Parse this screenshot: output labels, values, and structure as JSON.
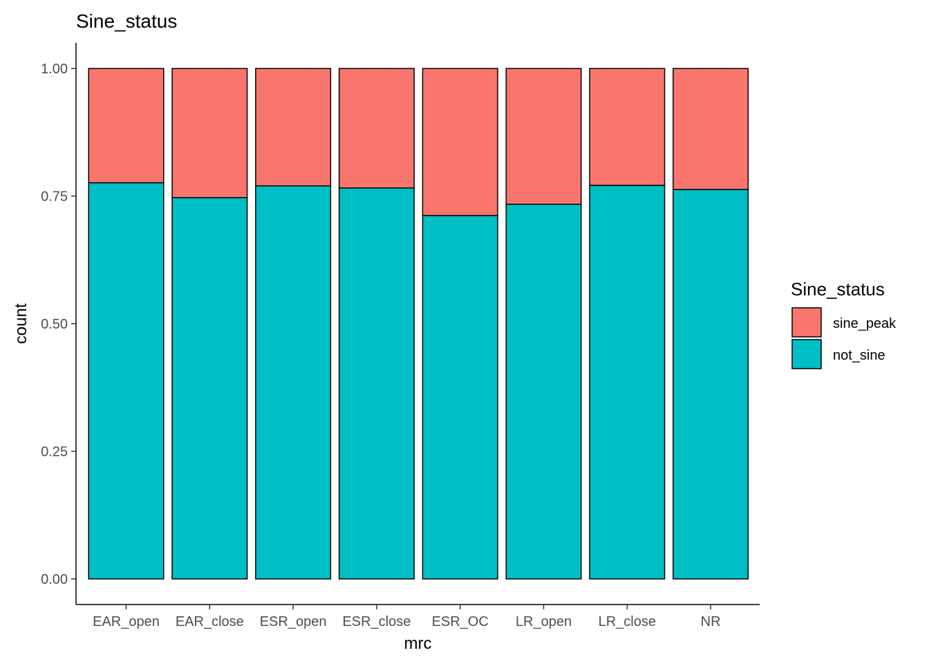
{
  "chart_data": {
    "type": "bar",
    "stacked": true,
    "title": "Sine_status",
    "xlabel": "mrc",
    "ylabel": "count",
    "ylim": [
      0,
      1
    ],
    "yticks": [
      "0.00",
      "0.25",
      "0.50",
      "0.75",
      "1.00"
    ],
    "grid": false,
    "legend": {
      "title": "Sine_status",
      "position": "right"
    },
    "categories": [
      "EAR_open",
      "EAR_close",
      "ESR_open",
      "ESR_close",
      "ESR_OC",
      "LR_open",
      "LR_close",
      "NR"
    ],
    "series": [
      {
        "name": "not_sine",
        "color": "#00BFC4",
        "values": [
          0.776,
          0.747,
          0.77,
          0.766,
          0.712,
          0.734,
          0.771,
          0.763
        ]
      },
      {
        "name": "sine_peak",
        "color": "#F8766D",
        "values": [
          0.224,
          0.253,
          0.23,
          0.234,
          0.288,
          0.266,
          0.229,
          0.237
        ]
      }
    ],
    "legend_order": [
      "sine_peak",
      "not_sine"
    ]
  }
}
